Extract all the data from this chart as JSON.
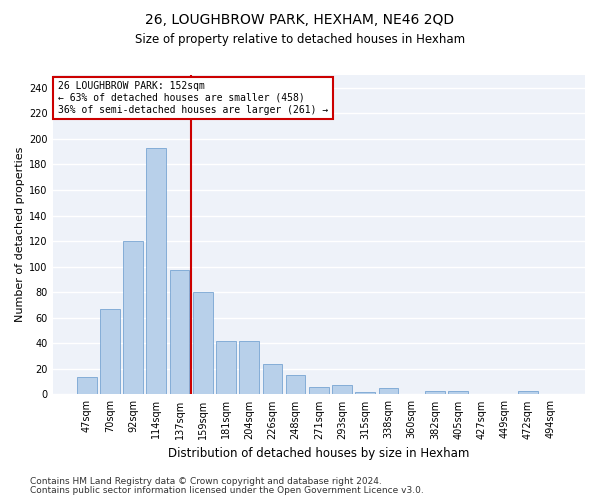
{
  "title": "26, LOUGHBROW PARK, HEXHAM, NE46 2QD",
  "subtitle": "Size of property relative to detached houses in Hexham",
  "xlabel": "Distribution of detached houses by size in Hexham",
  "ylabel": "Number of detached properties",
  "categories": [
    "47sqm",
    "70sqm",
    "92sqm",
    "114sqm",
    "137sqm",
    "159sqm",
    "181sqm",
    "204sqm",
    "226sqm",
    "248sqm",
    "271sqm",
    "293sqm",
    "315sqm",
    "338sqm",
    "360sqm",
    "382sqm",
    "405sqm",
    "427sqm",
    "449sqm",
    "472sqm",
    "494sqm"
  ],
  "values": [
    14,
    67,
    120,
    193,
    97,
    80,
    42,
    42,
    24,
    15,
    6,
    7,
    2,
    5,
    0,
    3,
    3,
    0,
    0,
    3,
    0
  ],
  "bar_color": "#b8d0ea",
  "bar_edge_color": "#6699cc",
  "vline_x_index": 4.5,
  "vline_color": "#cc0000",
  "annotation_text": "26 LOUGHBROW PARK: 152sqm\n← 63% of detached houses are smaller (458)\n36% of semi-detached houses are larger (261) →",
  "annotation_box_color": "#ffffff",
  "annotation_box_edge": "#cc0000",
  "ylim": [
    0,
    250
  ],
  "yticks": [
    0,
    20,
    40,
    60,
    80,
    100,
    120,
    140,
    160,
    180,
    200,
    220,
    240
  ],
  "bg_color": "#eef2f9",
  "grid_color": "#ffffff",
  "footer_line1": "Contains HM Land Registry data © Crown copyright and database right 2024.",
  "footer_line2": "Contains public sector information licensed under the Open Government Licence v3.0.",
  "title_fontsize": 10,
  "subtitle_fontsize": 8.5,
  "xlabel_fontsize": 8.5,
  "ylabel_fontsize": 8,
  "tick_fontsize": 7,
  "annot_fontsize": 7,
  "footer_fontsize": 6.5
}
